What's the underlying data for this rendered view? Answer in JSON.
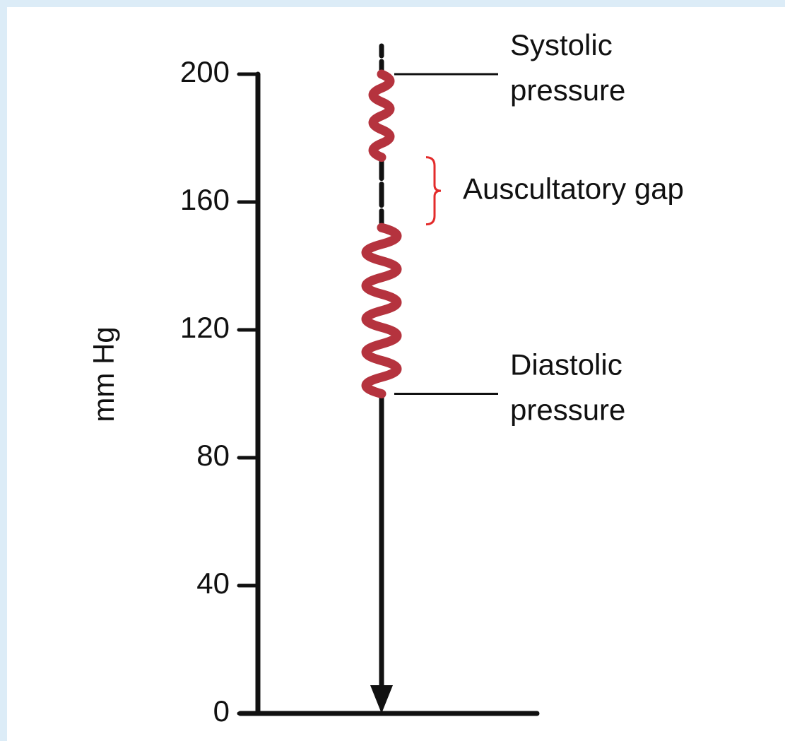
{
  "axis": {
    "label": "mm Hg",
    "ylim": [
      0,
      200
    ],
    "yticks": [
      0,
      40,
      80,
      120,
      160,
      200
    ]
  },
  "systolic": {
    "lines": [
      "Systolic",
      "pressure"
    ],
    "value": 200
  },
  "diastolic": {
    "lines": [
      "Diastolic",
      "pressure"
    ],
    "value": 100
  },
  "gap": {
    "label": "Auscultatory gap",
    "from": 174,
    "to": 153
  },
  "sounds": [
    [
      200,
      174
    ],
    [
      152,
      100
    ]
  ]
}
